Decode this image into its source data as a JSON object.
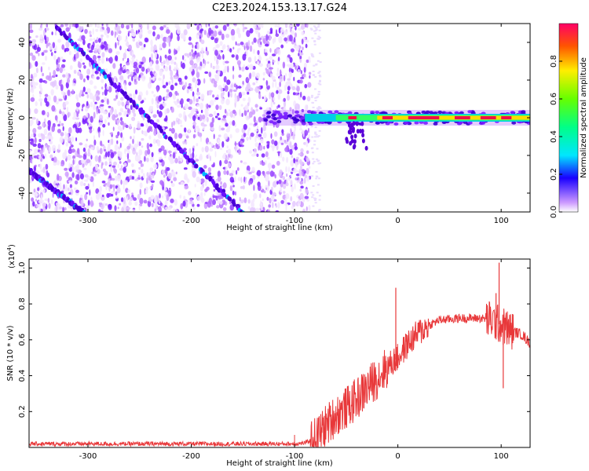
{
  "title": "C2E3.2024.153.13.17.G24",
  "colors": {
    "snr_line": "#e8383a",
    "track": "#5a00d8",
    "background": "#ffffff"
  },
  "chart_data": [
    {
      "type": "heatmap",
      "ylabel": "Frequency (Hz)",
      "xlabel": "Height of straight line (km)",
      "xlim": [
        -357,
        128
      ],
      "ylim": [
        -50,
        50
      ],
      "xticks": [
        -300,
        -200,
        -100,
        0,
        100
      ],
      "yticks": [
        40,
        20,
        0,
        -20,
        -40
      ],
      "colorbar": {
        "label": "Normalized spectral amplitude",
        "ticks": [
          "0.0",
          "0.2",
          "0.4",
          "0.6",
          "0.8"
        ],
        "range": [
          0,
          1
        ]
      },
      "features": [
        {
          "name": "diagonal",
          "from": [
            -330,
            48
          ],
          "to": [
            -150,
            -50
          ]
        },
        {
          "name": "lower-diagonal",
          "from": [
            -357,
            -28
          ],
          "to": [
            -305,
            -50
          ]
        },
        {
          "name": "central-line",
          "x_from": -130,
          "x_to": 128,
          "freq": 0
        }
      ],
      "noise_extent_x": [
        -357,
        -85
      ]
    },
    {
      "type": "line",
      "ylabel": "SNR (10 * v/v)",
      "ylabel_multiplier": "(x10",
      "ylabel_exponent": "4",
      "ylabel_close": ")",
      "xlabel": "Height of straight line (km)",
      "xlim": [
        -357,
        128
      ],
      "ylim": [
        0,
        1.05
      ],
      "xticks": [
        -300,
        -200,
        -100,
        0,
        100
      ],
      "yticks": [
        "0.2",
        "0.4",
        "0.6",
        "0.8",
        "1.0"
      ],
      "envelope": {
        "x": [
          -357,
          -110,
          -100,
          -90,
          -80,
          -70,
          -60,
          -50,
          -40,
          -30,
          -20,
          -10,
          0,
          10,
          20,
          30,
          40,
          60,
          80,
          90,
          100,
          110,
          120,
          128
        ],
        "mean": [
          0.02,
          0.02,
          0.02,
          0.025,
          0.05,
          0.12,
          0.18,
          0.22,
          0.27,
          0.33,
          0.39,
          0.45,
          0.5,
          0.58,
          0.64,
          0.68,
          0.71,
          0.72,
          0.72,
          0.71,
          0.68,
          0.65,
          0.63,
          0.58
        ]
      },
      "spikes": [
        {
          "x": -2,
          "y": 0.89
        },
        {
          "x": 98,
          "y": 1.03
        },
        {
          "x": 95,
          "y": 0.86
        },
        {
          "x": 102,
          "y": 0.33
        }
      ]
    }
  ]
}
